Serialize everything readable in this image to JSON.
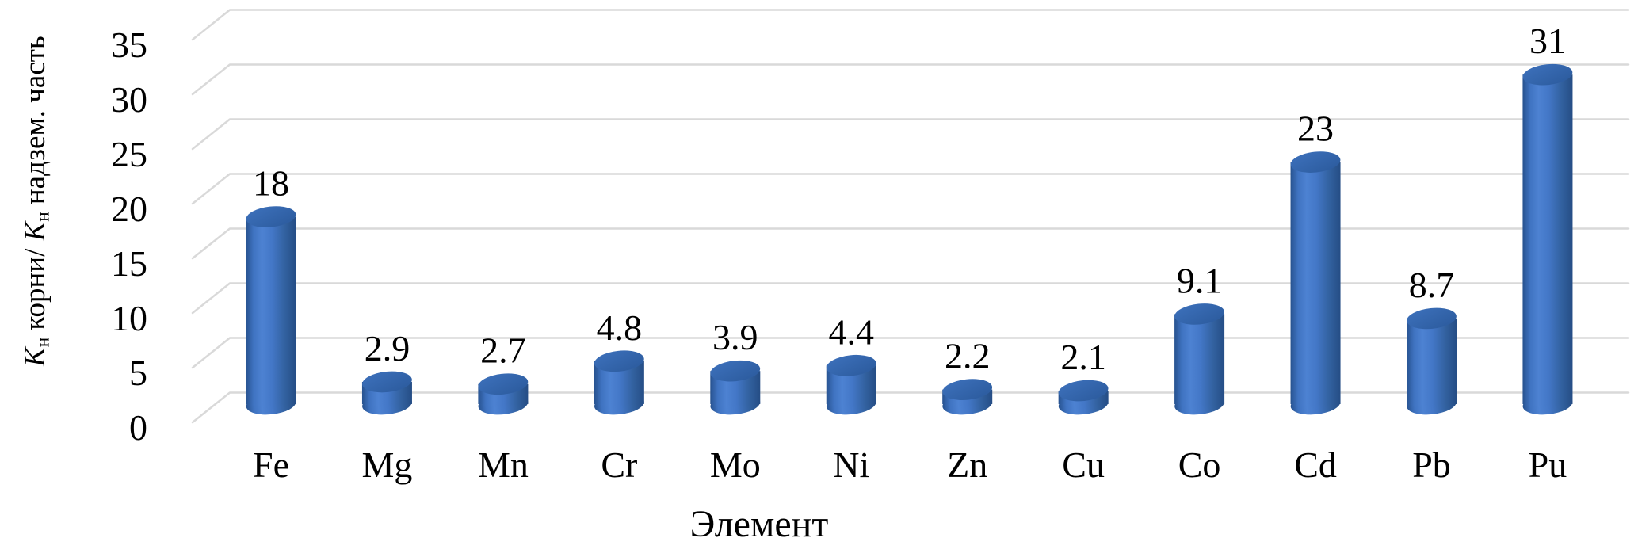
{
  "chart": {
    "background": "#ffffff",
    "gridline_color": "#d9d9d9",
    "text_color": "#000000",
    "bar_colors": {
      "edge_dark_left": "#27528F",
      "edge_dark_right": "#254D85",
      "mid": "#4377C7",
      "highlight": "#4D82D2",
      "shade": "#32619F",
      "top_light": "#3D71BC",
      "top_dark": "#2B5A9C"
    }
  },
  "chart_data": {
    "type": "bar",
    "style": "3d-cylinder",
    "categories": [
      "Fe",
      "Mg",
      "Mn",
      "Cr",
      "Mo",
      "Ni",
      "Zn",
      "Cu",
      "Co",
      "Cd",
      "Pb",
      "Pu"
    ],
    "values": [
      18,
      2.9,
      2.7,
      4.8,
      3.9,
      4.4,
      2.2,
      2.1,
      9.1,
      23,
      8.7,
      31
    ],
    "data_labels": [
      "18",
      "2.9",
      "2.7",
      "4.8",
      "3.9",
      "4.4",
      "2.2",
      "2.1",
      "9.1",
      "23",
      "8.7",
      "31"
    ],
    "title": "",
    "xlabel": "Элемент",
    "ylabel": "Kн корни/ Kн надзем. часть",
    "y_ticks": [
      0,
      5,
      10,
      15,
      20,
      25,
      30,
      35
    ],
    "ylim": [
      0,
      37.5
    ],
    "grid": true,
    "legend": false
  },
  "ylabel_parts": {
    "k1": "K",
    "sub1": "н",
    "mid": " корни/ ",
    "k2": "K",
    "sub2": "н",
    "end": " надзем. часть"
  }
}
